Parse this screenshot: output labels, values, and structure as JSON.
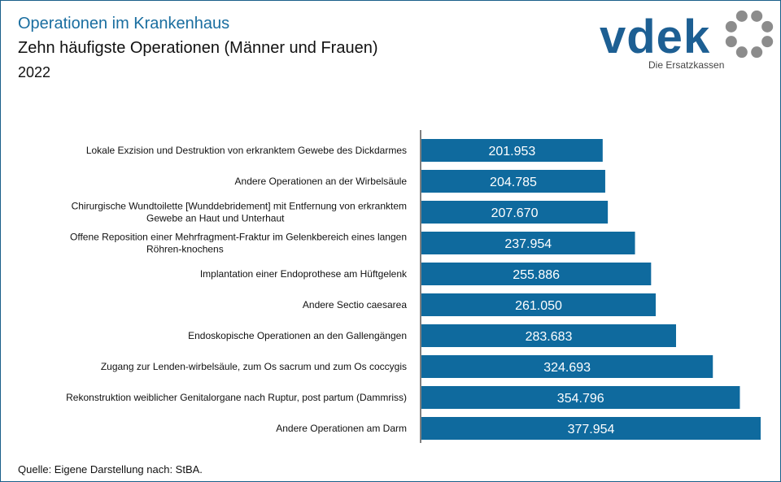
{
  "header": {
    "title": "Operationen im Krankenhaus",
    "subtitle": "Zehn häufigste Operationen (Männer und Frauen)",
    "year": "2022"
  },
  "logo": {
    "wordmark": "vdek",
    "tagline": "Die Ersatzkassen"
  },
  "source": "Quelle: Eigene Darstellung nach: StBA.",
  "colors": {
    "bar": "#0f6a9e",
    "title": "#1a6ea0",
    "logo_text": "#1d5f93",
    "logo_dots": "#8c8c8c"
  },
  "chart_data": {
    "type": "bar",
    "orientation": "horizontal",
    "title": "Zehn häufigste Operationen (Männer und Frauen)",
    "xlabel": "",
    "ylabel": "",
    "xlim": [
      0,
      377954
    ],
    "grid": false,
    "categories": [
      [
        "Lokale Exzision und Destruktion von erkranktem Gewebe des Dickdarmes"
      ],
      [
        "Andere Operationen an der Wirbelsäule"
      ],
      [
        "Chirurgische Wundtoilette [Wunddebridement] mit Entfernung von erkranktem",
        "Gewebe an Haut und Unterhaut"
      ],
      [
        "Offene Reposition einer Mehrfragment-Fraktur im Gelenkbereich eines langen",
        "Röhren-knochens"
      ],
      [
        "Implantation einer Endoprothese am Hüftgelenk"
      ],
      [
        "Andere Sectio caesarea"
      ],
      [
        "Endoskopische Operationen an den Gallengängen"
      ],
      [
        "Zugang zur Lenden-wirbelsäule, zum Os sacrum und zum Os coccygis"
      ],
      [
        "Rekonstruktion weiblicher Genitalorgane nach Ruptur, post partum (Dammriss)"
      ],
      [
        "Andere Operationen am Darm"
      ]
    ],
    "values": [
      201953,
      204785,
      207670,
      237954,
      255886,
      261050,
      283683,
      324693,
      354796,
      377954
    ],
    "value_labels": [
      "201.953",
      "204.785",
      "207.670",
      "237.954",
      "255.886",
      "261.050",
      "283.683",
      "324.693",
      "354.796",
      "377.954"
    ]
  }
}
